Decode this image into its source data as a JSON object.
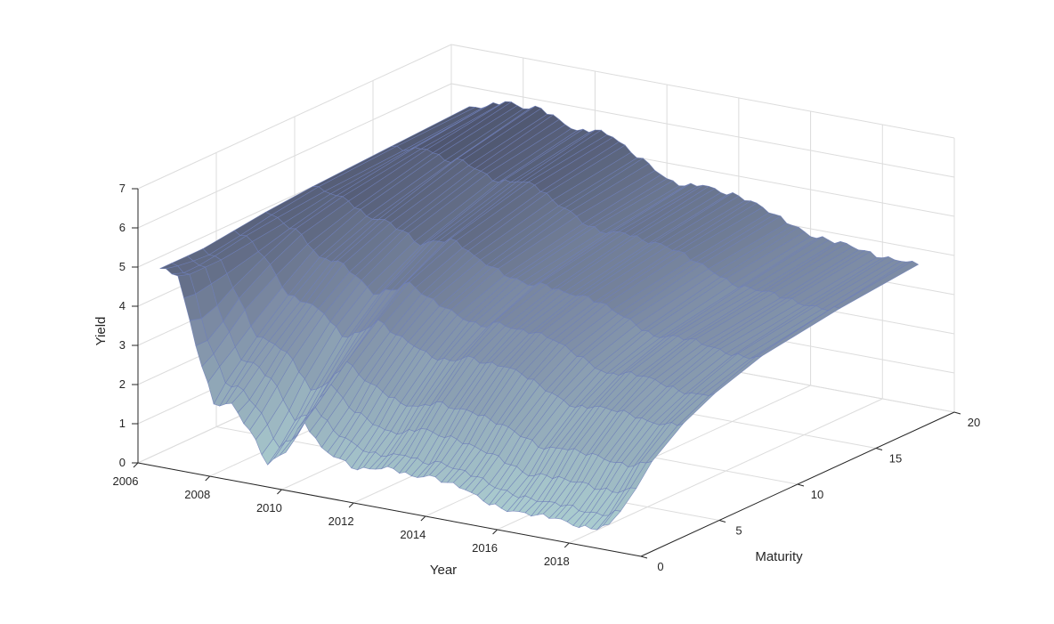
{
  "chart_data": {
    "type": "surface",
    "xlabel": "Year",
    "ylabel": "Maturity",
    "zlabel": "Yield",
    "x_ticks": [
      "2006",
      "2008",
      "2010",
      "2012",
      "2014",
      "2016",
      "2018"
    ],
    "y_ticks": [
      "0",
      "5",
      "10",
      "15",
      "20"
    ],
    "z_ticks": [
      "0",
      "1",
      "2",
      "3",
      "4",
      "5",
      "6",
      "7"
    ],
    "xlim": [
      2006,
      2020
    ],
    "ylim": [
      0,
      20
    ],
    "zlim": [
      0,
      7
    ],
    "grid": true,
    "colormap": "bone",
    "edge_color": "#6f7fb8",
    "maturities": [
      0.25,
      1,
      2,
      3,
      5,
      7,
      10,
      15,
      20
    ],
    "x": [
      2006.5,
      2007.0,
      2007.5,
      2008.0,
      2008.5,
      2009.0,
      2009.5,
      2010.0,
      2010.5,
      2011.0,
      2011.5,
      2012.0,
      2012.5,
      2013.0,
      2013.5,
      2014.0,
      2014.5,
      2015.0,
      2015.5,
      2016.0,
      2016.5,
      2017.0,
      2017.5,
      2018.0,
      2018.5,
      2019.0
    ],
    "series": [
      {
        "values": [
          5.0,
          4.9,
          3.2,
          1.8,
          1.9,
          1.3,
          0.5,
          0.9,
          1.8,
          1.2,
          1.0,
          0.8,
          0.9,
          1.0,
          0.9,
          1.0,
          0.9,
          0.8,
          0.6,
          0.5,
          0.5,
          0.5,
          0.5,
          0.4,
          0.4,
          0.6
        ]
      },
      {
        "values": [
          5.0,
          4.8,
          3.2,
          2.2,
          2.1,
          1.6,
          0.8,
          1.2,
          2.0,
          1.5,
          1.3,
          1.1,
          1.1,
          1.2,
          1.1,
          1.2,
          1.1,
          1.0,
          0.8,
          0.7,
          0.7,
          0.7,
          0.7,
          0.6,
          0.6,
          0.8
        ]
      },
      {
        "values": [
          5.0,
          4.8,
          3.5,
          2.6,
          2.5,
          2.1,
          1.3,
          1.7,
          2.4,
          1.9,
          1.7,
          1.5,
          1.5,
          1.7,
          1.6,
          1.6,
          1.5,
          1.4,
          1.2,
          1.0,
          1.1,
          1.1,
          1.1,
          1.0,
          1.0,
          1.2
        ]
      },
      {
        "values": [
          5.0,
          4.8,
          3.9,
          3.0,
          2.9,
          2.6,
          1.9,
          2.2,
          2.8,
          2.4,
          2.2,
          2.0,
          2.0,
          2.2,
          2.1,
          2.1,
          2.0,
          1.9,
          1.7,
          1.5,
          1.6,
          1.6,
          1.6,
          1.5,
          1.5,
          1.7
        ]
      },
      {
        "values": [
          5.1,
          4.9,
          4.4,
          3.7,
          3.6,
          3.4,
          2.9,
          3.1,
          3.5,
          3.2,
          3.0,
          2.8,
          2.8,
          3.0,
          2.9,
          2.9,
          2.8,
          2.6,
          2.4,
          2.2,
          2.3,
          2.3,
          2.3,
          2.2,
          2.2,
          2.3
        ]
      },
      {
        "values": [
          5.2,
          5.0,
          4.8,
          4.3,
          4.3,
          4.0,
          3.6,
          3.8,
          4.1,
          3.8,
          3.6,
          3.4,
          3.3,
          3.5,
          3.4,
          3.4,
          3.3,
          3.1,
          2.9,
          2.7,
          2.8,
          2.8,
          2.7,
          2.6,
          2.6,
          2.7
        ]
      },
      {
        "values": [
          5.3,
          5.2,
          5.1,
          4.8,
          4.8,
          4.6,
          4.3,
          4.5,
          4.6,
          4.3,
          4.1,
          3.9,
          3.8,
          3.9,
          3.8,
          3.8,
          3.7,
          3.5,
          3.3,
          3.1,
          3.2,
          3.2,
          3.1,
          3.0,
          3.0,
          3.1
        ]
      },
      {
        "values": [
          5.4,
          5.4,
          5.5,
          5.3,
          5.4,
          5.2,
          5.0,
          5.1,
          5.1,
          4.8,
          4.6,
          4.3,
          4.2,
          4.3,
          4.2,
          4.2,
          4.1,
          3.9,
          3.7,
          3.5,
          3.5,
          3.5,
          3.4,
          3.3,
          3.3,
          3.4
        ]
      },
      {
        "values": [
          5.5,
          5.6,
          5.8,
          5.7,
          5.8,
          5.6,
          5.4,
          5.5,
          5.4,
          5.1,
          4.9,
          4.6,
          4.5,
          4.6,
          4.5,
          4.5,
          4.4,
          4.2,
          4.0,
          3.8,
          3.8,
          3.8,
          3.7,
          3.6,
          3.6,
          3.6
        ]
      }
    ]
  }
}
